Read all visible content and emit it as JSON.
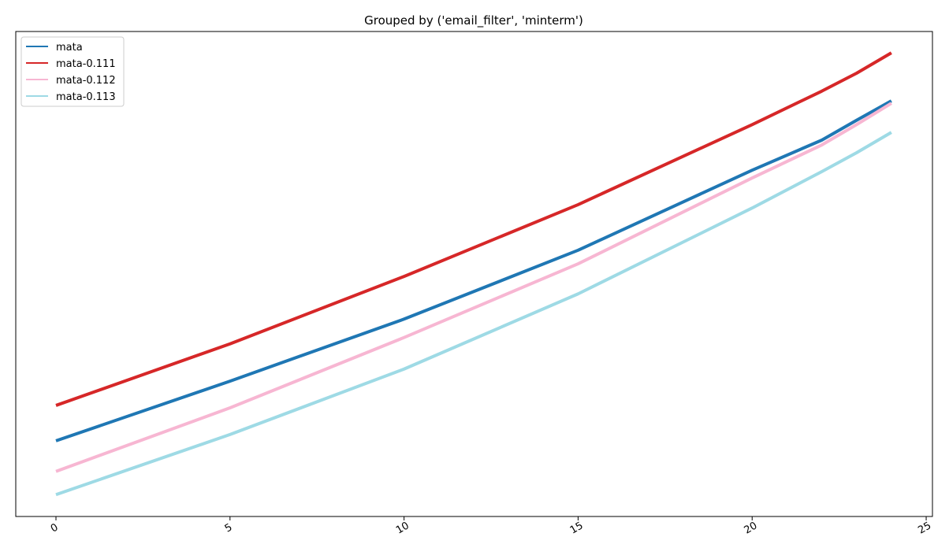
{
  "chart_data": {
    "type": "line",
    "title": "Grouped by ('email_filter', 'minterm')",
    "x": [
      0,
      5,
      10,
      15,
      20,
      22,
      23,
      24
    ],
    "series": [
      {
        "name": "mata",
        "color": "#1f77b4",
        "values": [
          15.6,
          27.9,
          40.7,
          54.9,
          71.4,
          77.6,
          81.7,
          85.7
        ]
      },
      {
        "name": "mata-0.111",
        "color": "#d62728",
        "values": [
          22.9,
          35.6,
          49.5,
          64.3,
          80.8,
          87.7,
          91.4,
          95.6
        ]
      },
      {
        "name": "mata-0.112",
        "color": "#f7b6d2",
        "values": [
          9.3,
          22.4,
          36.9,
          52.1,
          69.8,
          76.6,
          80.8,
          85.2
        ]
      },
      {
        "name": "mata-0.113",
        "color": "#9edae5",
        "values": [
          4.5,
          16.9,
          30.4,
          45.9,
          63.6,
          71.1,
          75.0,
          79.2
        ]
      }
    ],
    "xlim": [
      -1.155,
      25.18
    ],
    "xticks": [
      0,
      5,
      10,
      15,
      20,
      25
    ],
    "ylim": [
      0,
      100
    ],
    "legend": "upper left"
  }
}
